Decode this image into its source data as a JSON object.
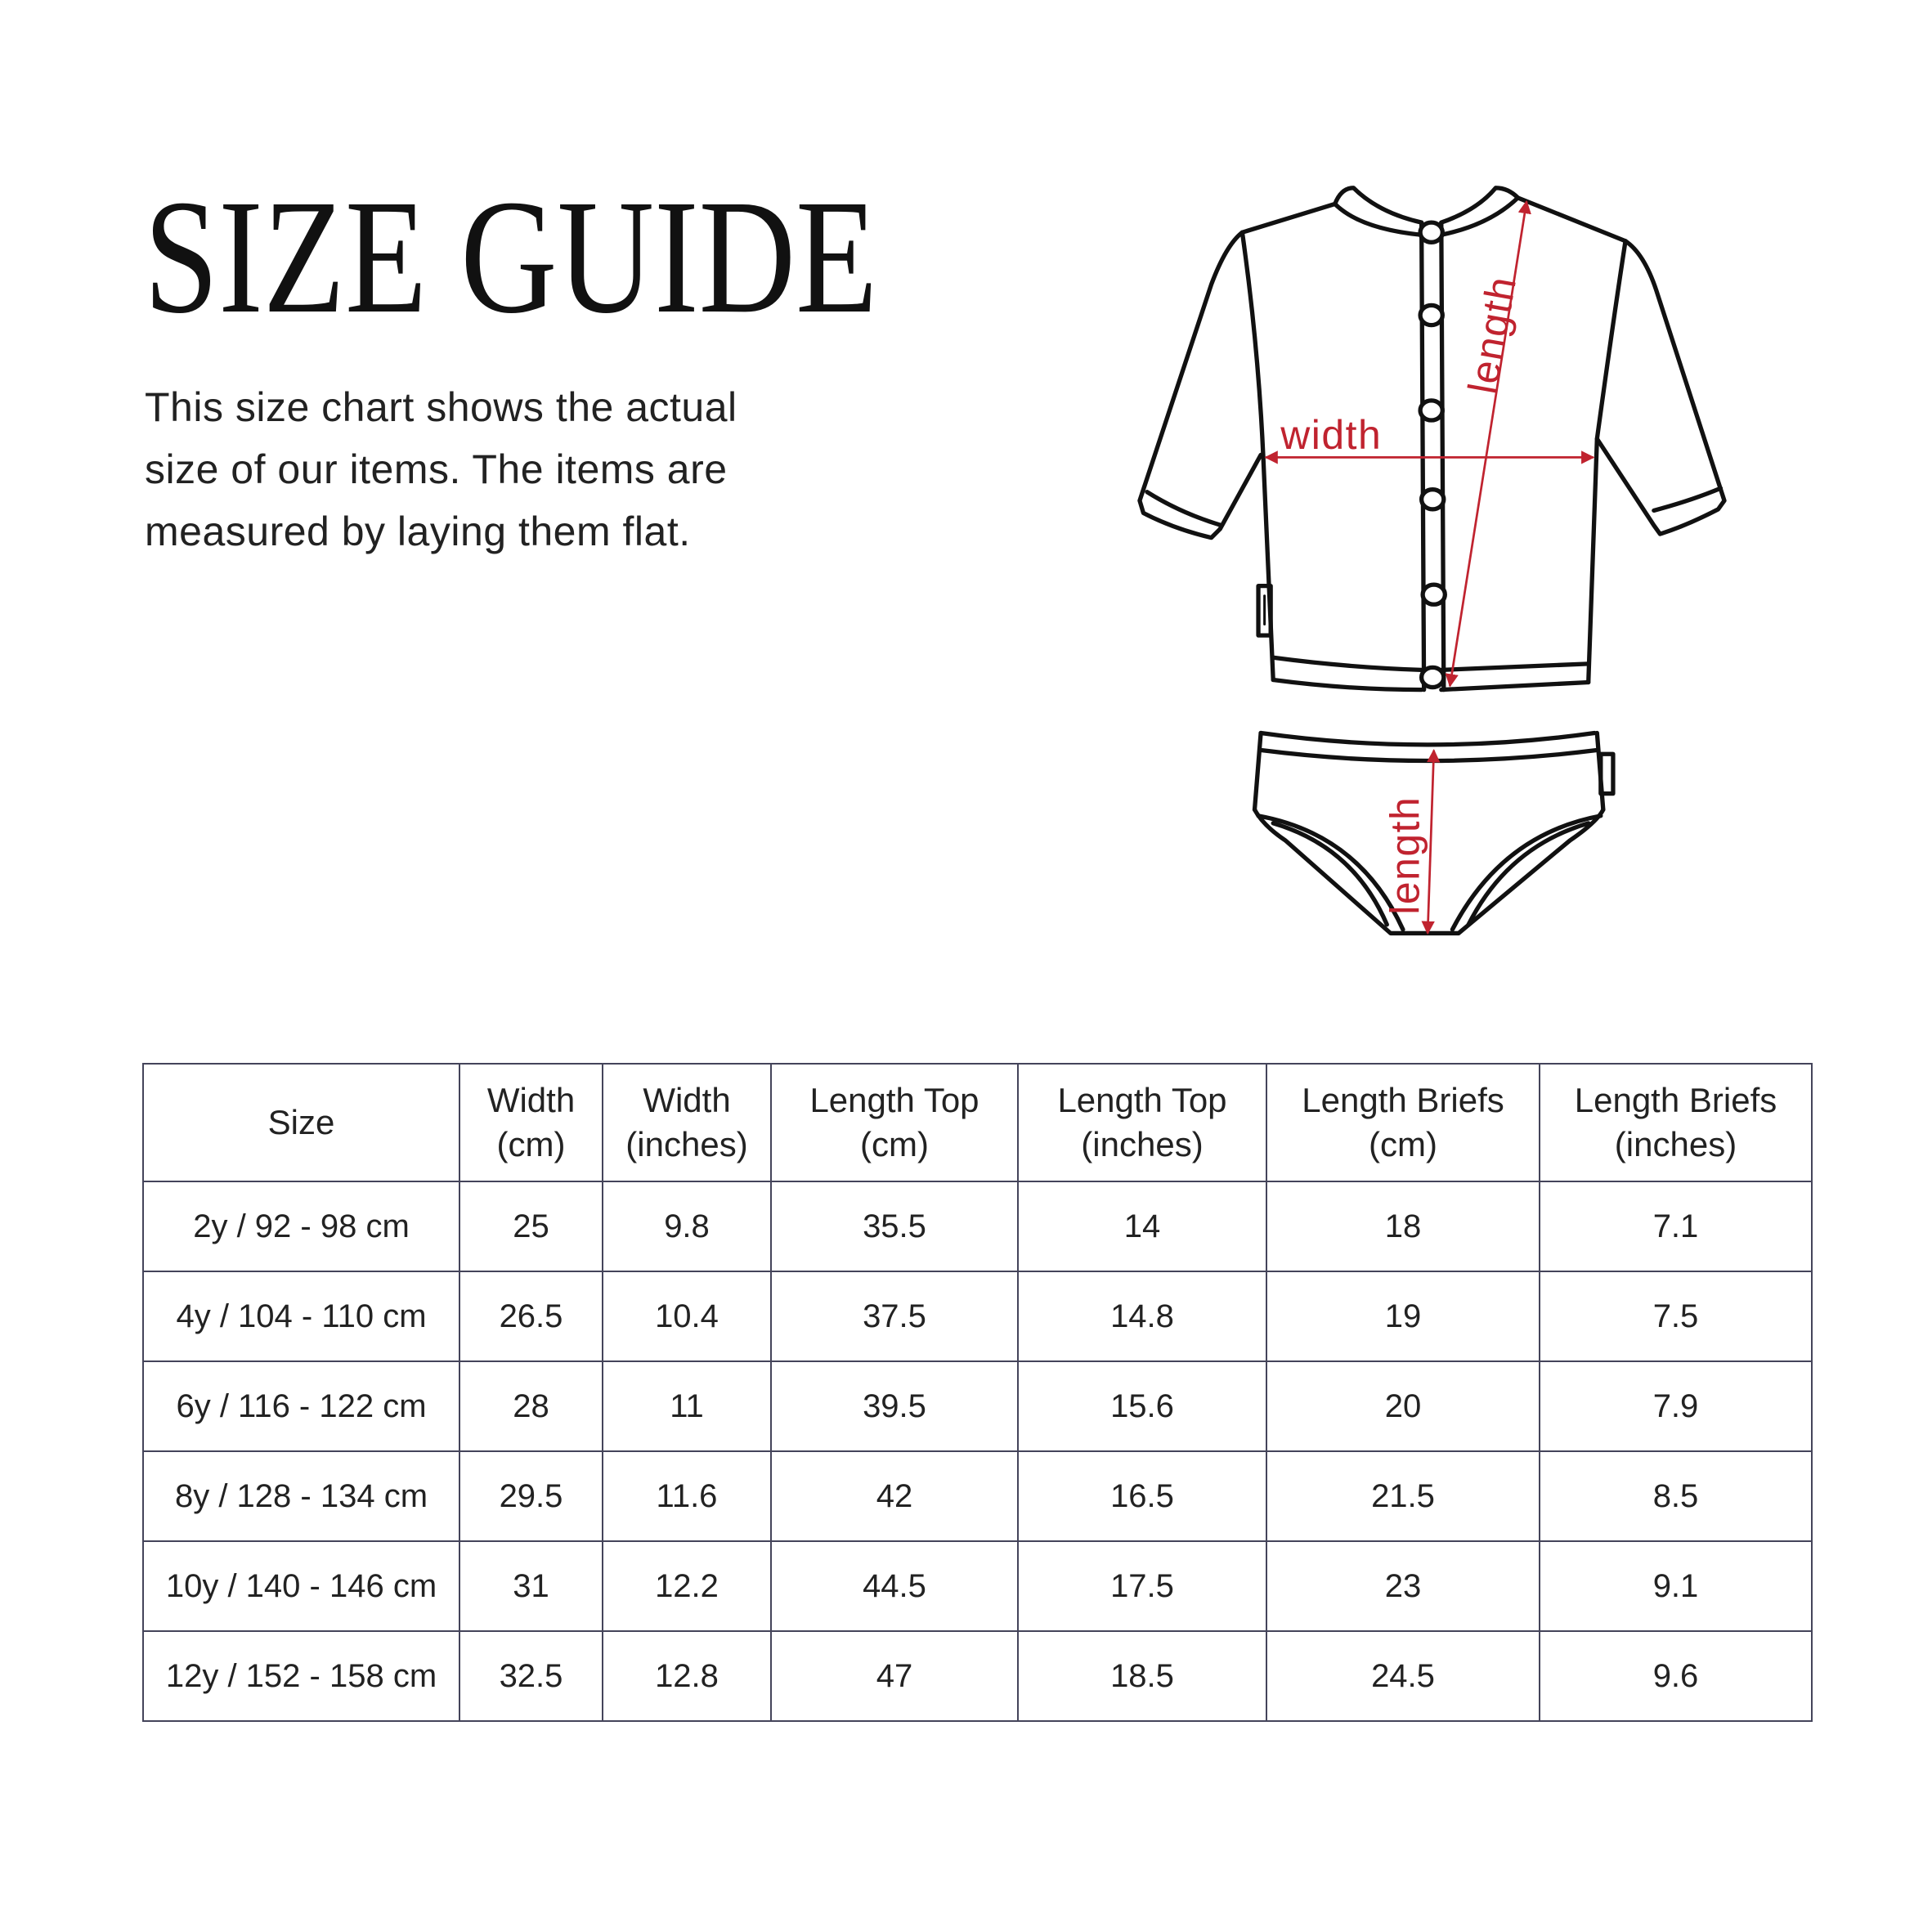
{
  "title": "SIZE GUIDE",
  "intro_lines": [
    "This size chart shows the actual",
    "size of our items. The items are",
    "measured by laying them flat."
  ],
  "illustration": {
    "width_label": "width",
    "length_top_label": "length",
    "length_briefs_label": "length",
    "accent_color": "#c0232f"
  },
  "table": {
    "headers": [
      [
        "Size",
        ""
      ],
      [
        "Width",
        "(cm)"
      ],
      [
        "Width",
        "(inches)"
      ],
      [
        "Length Top",
        "(cm)"
      ],
      [
        "Length Top",
        "(inches)"
      ],
      [
        "Length Briefs",
        "(cm)"
      ],
      [
        "Length Briefs",
        "(inches)"
      ]
    ],
    "rows": [
      [
        "2y / 92 - 98 cm",
        "25",
        "9.8",
        "35.5",
        "14",
        "18",
        "7.1"
      ],
      [
        "4y / 104 - 110 cm",
        "26.5",
        "10.4",
        "37.5",
        "14.8",
        "19",
        "7.5"
      ],
      [
        "6y / 116 - 122 cm",
        "28",
        "11",
        "39.5",
        "15.6",
        "20",
        "7.9"
      ],
      [
        "8y / 128 - 134 cm",
        "29.5",
        "11.6",
        "42",
        "16.5",
        "21.5",
        "8.5"
      ],
      [
        "10y / 140 - 146 cm",
        "31",
        "12.2",
        "44.5",
        "17.5",
        "23",
        "9.1"
      ],
      [
        "12y / 152 - 158 cm",
        "32.5",
        "12.8",
        "47",
        "18.5",
        "24.5",
        "9.6"
      ]
    ]
  }
}
